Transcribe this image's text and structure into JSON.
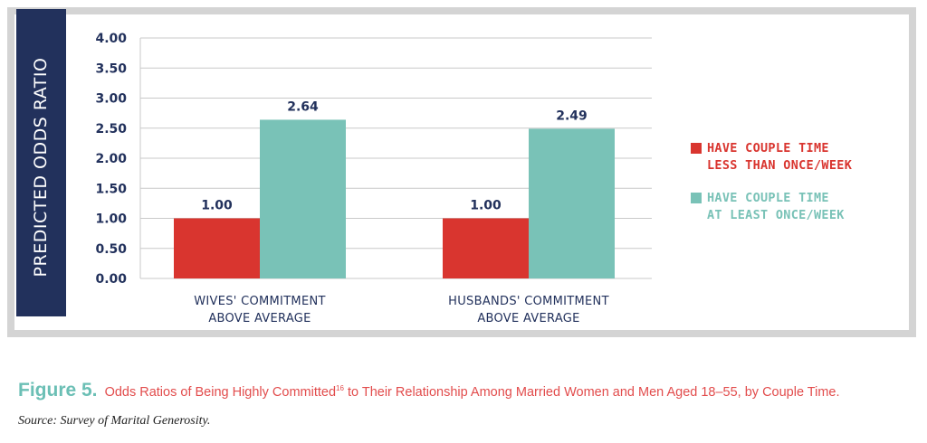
{
  "chart_data": {
    "type": "bar",
    "ylabel": "PREDICTED ODDS RATIO",
    "ylim": [
      0,
      4
    ],
    "yticks": [
      "0.00",
      "0.50",
      "1.00",
      "1.50",
      "2.00",
      "2.50",
      "3.00",
      "3.50",
      "4.00"
    ],
    "categories": [
      "WIVES' COMMITMENT\nABOVE AVERAGE",
      "HUSBANDS' COMMITMENT\nABOVE AVERAGE"
    ],
    "series": [
      {
        "name": "HAVE COUPLE TIME\nLESS THAN ONCE/WEEK",
        "values": [
          1.0,
          1.0
        ],
        "labels": [
          "1.00",
          "1.00"
        ],
        "color": "#d9352f"
      },
      {
        "name": "HAVE COUPLE TIME\nAT LEAST ONCE/WEEK",
        "values": [
          2.64,
          2.49
        ],
        "labels": [
          "2.64",
          "2.49"
        ],
        "color": "#79c2b7"
      }
    ],
    "grid": true,
    "legend": "right"
  },
  "colors": {
    "frame": "#d4d4d4",
    "ylabel_bg": "#22315c",
    "caption_text": "#e24c4c",
    "figure_label": "#6bbfb5"
  },
  "caption": {
    "figure": "Figure 5.",
    "text_before": "Odds Ratios of Being Highly Committed",
    "superscript": "16",
    "text_after": " to Their Relationship Among Married Women and Men Aged 18–55, by Couple Time."
  },
  "source": "Source: Survey of Marital Generosity."
}
